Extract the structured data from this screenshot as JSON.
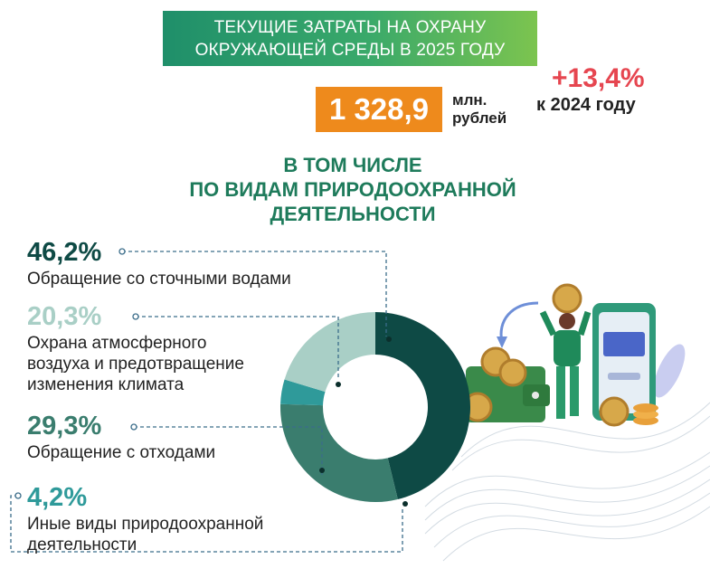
{
  "header": {
    "title_line1": "ТЕКУЩИЕ ЗАТРАТЫ НА ОХРАНУ",
    "title_line2": "ОКРУЖАЮЩЕЙ СРЕДЫ В 2025 ГОДУ"
  },
  "total": {
    "value": "1 328,9",
    "unit_line1": "млн.",
    "unit_line2": "рублей"
  },
  "growth": {
    "value": "+13,4%",
    "label": "к 2024 году"
  },
  "subtitle": {
    "line1": "В ТОМ ЧИСЛЕ",
    "line2": "ПО ВИДАМ ПРИРОДООХРАННОЙ",
    "line3": "ДЕЯТЕЛЬНОСТИ"
  },
  "colors": {
    "banner_start": "#1f8f6a",
    "banner_end": "#7cc44f",
    "total_box": "#ee8a1c",
    "growth": "#e64650",
    "subtitle": "#1e7b5b"
  },
  "icons": [
    "wallet-icon",
    "coin-icon",
    "smartphone-icon",
    "person-icon",
    "arrow-icon",
    "leaf-icon"
  ],
  "chart_data": {
    "type": "pie",
    "style": "donut",
    "categories": [
      "Обращение со сточными водами",
      "Охрана атмосферного воздуха и предотвращение изменения климата",
      "Обращение с отходами",
      "Иные виды природоохранной деятельности"
    ],
    "values": [
      46.2,
      20.3,
      29.3,
      4.2
    ],
    "data_labels": [
      "46,2%",
      "20,3%",
      "29,3%",
      "4,2%"
    ],
    "colors": [
      "#0e4a45",
      "#a9cfc6",
      "#3a7d6e",
      "#2f9a9a"
    ],
    "label_colors": [
      "#0e4a45",
      "#a9cfc6",
      "#3a7d6e",
      "#2f9a9a"
    ],
    "label_lines": [
      [
        "Обращение со сточными водами"
      ],
      [
        "Охрана атмосферного",
        "воздуха и предотвращение",
        "изменения климата"
      ],
      [
        "Обращение с отходами"
      ],
      [
        "Иные виды природоохранной",
        "деятельности"
      ]
    ]
  }
}
